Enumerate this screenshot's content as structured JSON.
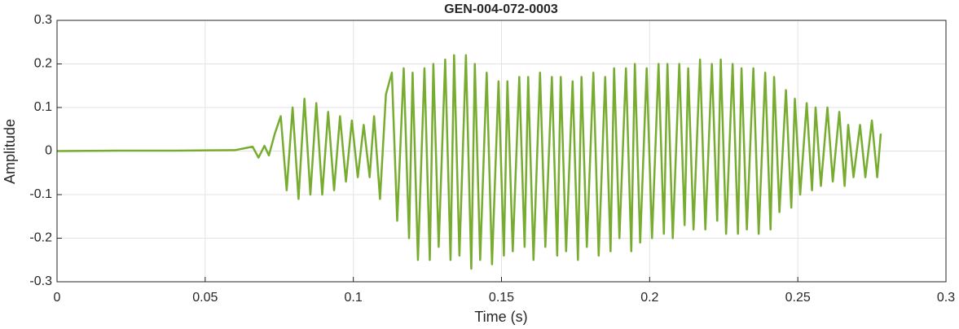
{
  "chart_data": {
    "type": "line",
    "title": "GEN-004-072-0003",
    "xlabel": "Time (s)",
    "ylabel": "Amplitude",
    "x": [
      0,
      0.02,
      0.04,
      0.06,
      0.066,
      0.068,
      0.07,
      0.0715,
      0.0735,
      0.0755,
      0.0775,
      0.0795,
      0.0815,
      0.0835,
      0.0855,
      0.0875,
      0.0895,
      0.0915,
      0.0935,
      0.0955,
      0.0975,
      0.0995,
      0.1015,
      0.1035,
      0.1055,
      0.107,
      0.109,
      0.111,
      0.113,
      0.1148,
      0.117,
      0.1188,
      0.12,
      0.1218,
      0.124,
      0.1258,
      0.127,
      0.1288,
      0.131,
      0.1328,
      0.134,
      0.1358,
      0.138,
      0.1398,
      0.141,
      0.1428,
      0.145,
      0.1468,
      0.149,
      0.1508,
      0.152,
      0.1538,
      0.156,
      0.1578,
      0.159,
      0.1608,
      0.163,
      0.1648,
      0.167,
      0.1688,
      0.17,
      0.1718,
      0.174,
      0.1758,
      0.177,
      0.1788,
      0.181,
      0.1828,
      0.185,
      0.1868,
      0.188,
      0.1898,
      0.192,
      0.1938,
      0.195,
      0.1968,
      0.199,
      0.2008,
      0.203,
      0.2048,
      0.206,
      0.2078,
      0.21,
      0.2118,
      0.213,
      0.2148,
      0.217,
      0.2188,
      0.221,
      0.2228,
      0.224,
      0.2258,
      0.228,
      0.2298,
      0.231,
      0.2328,
      0.235,
      0.2368,
      0.239,
      0.2408,
      0.242,
      0.2438,
      0.246,
      0.2478,
      0.249,
      0.2508,
      0.253,
      0.2548,
      0.256,
      0.2578,
      0.26,
      0.2618,
      0.264,
      0.2658,
      0.267,
      0.2688,
      0.271,
      0.2728,
      0.275,
      0.2768,
      0.278
    ],
    "values": [
      0,
      0.001,
      0.001,
      0.002,
      0.01,
      -0.015,
      0.012,
      -0.01,
      0.04,
      0.08,
      -0.09,
      0.1,
      -0.11,
      0.12,
      -0.1,
      0.11,
      -0.1,
      0.09,
      -0.09,
      0.08,
      -0.07,
      0.07,
      -0.06,
      0.06,
      -0.06,
      0.08,
      -0.11,
      0.13,
      0.18,
      -0.16,
      0.19,
      -0.2,
      0.18,
      -0.25,
      0.19,
      -0.25,
      0.2,
      -0.22,
      0.21,
      -0.25,
      0.22,
      -0.24,
      0.22,
      -0.27,
      0.2,
      -0.25,
      0.18,
      -0.26,
      0.16,
      -0.24,
      0.16,
      -0.23,
      0.17,
      -0.22,
      0.17,
      -0.25,
      0.18,
      -0.22,
      0.17,
      -0.24,
      0.17,
      -0.23,
      0.16,
      -0.25,
      0.17,
      -0.22,
      0.18,
      -0.24,
      0.17,
      -0.23,
      0.19,
      -0.2,
      0.19,
      -0.23,
      0.2,
      -0.21,
      0.19,
      -0.2,
      0.2,
      -0.19,
      0.2,
      -0.2,
      0.2,
      -0.17,
      0.19,
      -0.18,
      0.21,
      -0.18,
      0.2,
      -0.16,
      0.21,
      -0.19,
      0.2,
      -0.19,
      0.19,
      -0.18,
      0.19,
      -0.19,
      0.18,
      -0.18,
      0.17,
      -0.14,
      0.14,
      -0.13,
      0.12,
      -0.1,
      0.11,
      -0.09,
      0.1,
      -0.08,
      0.1,
      -0.07,
      0.09,
      -0.08,
      0.06,
      -0.06,
      0.06,
      -0.06,
      0.07,
      -0.06,
      0.04
    ],
    "color": "#77ac30",
    "xlim": [
      0,
      0.3
    ],
    "xticks": [
      0,
      0.05,
      0.1,
      0.15,
      0.2,
      0.25,
      0.3
    ],
    "ylim": [
      -0.3,
      0.3
    ],
    "yticks": [
      -0.3,
      -0.2,
      -0.1,
      0,
      0.1,
      0.2,
      0.3
    ],
    "grid": true
  }
}
